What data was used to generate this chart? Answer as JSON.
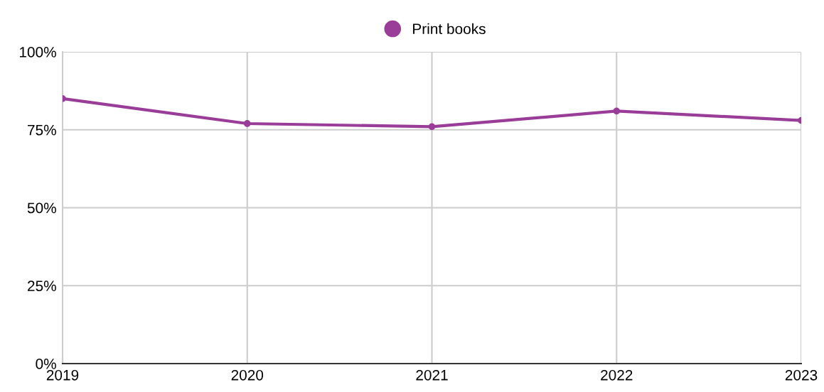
{
  "chart_data": {
    "type": "line",
    "categories": [
      "2019",
      "2020",
      "2021",
      "2022",
      "2023"
    ],
    "series": [
      {
        "name": "Print books",
        "color": "#993d99",
        "values": [
          85,
          77,
          76,
          81,
          78
        ]
      }
    ],
    "ylim": [
      0,
      100
    ],
    "yticks": [
      {
        "value": 0,
        "label": "0%"
      },
      {
        "value": 25,
        "label": "25%"
      },
      {
        "value": 50,
        "label": "50%"
      },
      {
        "value": 75,
        "label": "75%"
      },
      {
        "value": 100,
        "label": "100%"
      }
    ],
    "grid": true,
    "legend": "top",
    "marker": "circle",
    "line_style": "solid"
  }
}
